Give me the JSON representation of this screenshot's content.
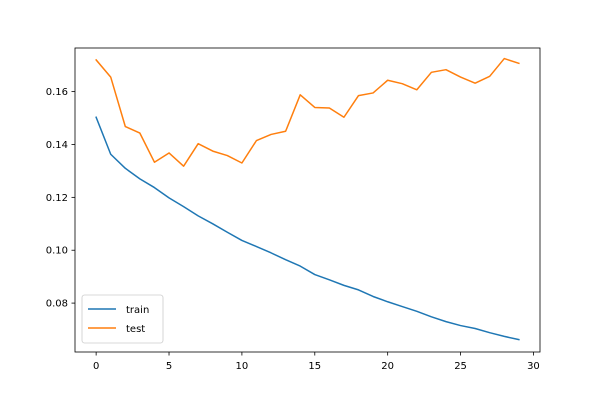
{
  "chart_data": {
    "type": "line",
    "title": "",
    "xlabel": "",
    "ylabel": "",
    "xlim": [
      -1.45,
      30.45
    ],
    "ylim": [
      0.0615,
      0.1765
    ],
    "x_ticks": [
      0,
      5,
      10,
      15,
      20,
      25,
      30
    ],
    "x_tick_labels": [
      "0",
      "5",
      "10",
      "15",
      "20",
      "25",
      "30"
    ],
    "y_ticks": [
      0.08,
      0.1,
      0.12,
      0.14,
      0.16
    ],
    "y_tick_labels": [
      "0.08",
      "0.10",
      "0.12",
      "0.14",
      "0.16"
    ],
    "grid": false,
    "legend_position": "lower-left",
    "x": [
      0,
      1,
      2,
      3,
      4,
      5,
      6,
      7,
      8,
      9,
      10,
      11,
      12,
      13,
      14,
      15,
      16,
      17,
      18,
      19,
      20,
      21,
      22,
      23,
      24,
      25,
      26,
      27,
      28,
      29
    ],
    "series": [
      {
        "name": "train",
        "color": "#1f77b4",
        "values": [
          0.1503,
          0.1363,
          0.131,
          0.127,
          0.1237,
          0.1198,
          0.1165,
          0.113,
          0.11,
          0.1068,
          0.1037,
          0.1014,
          0.099,
          0.0964,
          0.094,
          0.0908,
          0.0888,
          0.0867,
          0.085,
          0.0825,
          0.0805,
          0.0787,
          0.0769,
          0.0748,
          0.073,
          0.0715,
          0.0704,
          0.0688,
          0.0674,
          0.0662
        ]
      },
      {
        "name": "test",
        "color": "#ff7f0e",
        "values": [
          0.172,
          0.1655,
          0.1468,
          0.1443,
          0.1333,
          0.1368,
          0.1318,
          0.1403,
          0.1375,
          0.1358,
          0.133,
          0.1415,
          0.1438,
          0.145,
          0.1588,
          0.154,
          0.1538,
          0.1503,
          0.1585,
          0.1595,
          0.1643,
          0.163,
          0.1607,
          0.1673,
          0.1683,
          0.1655,
          0.1632,
          0.1658,
          0.1725,
          0.1707
        ]
      }
    ]
  }
}
